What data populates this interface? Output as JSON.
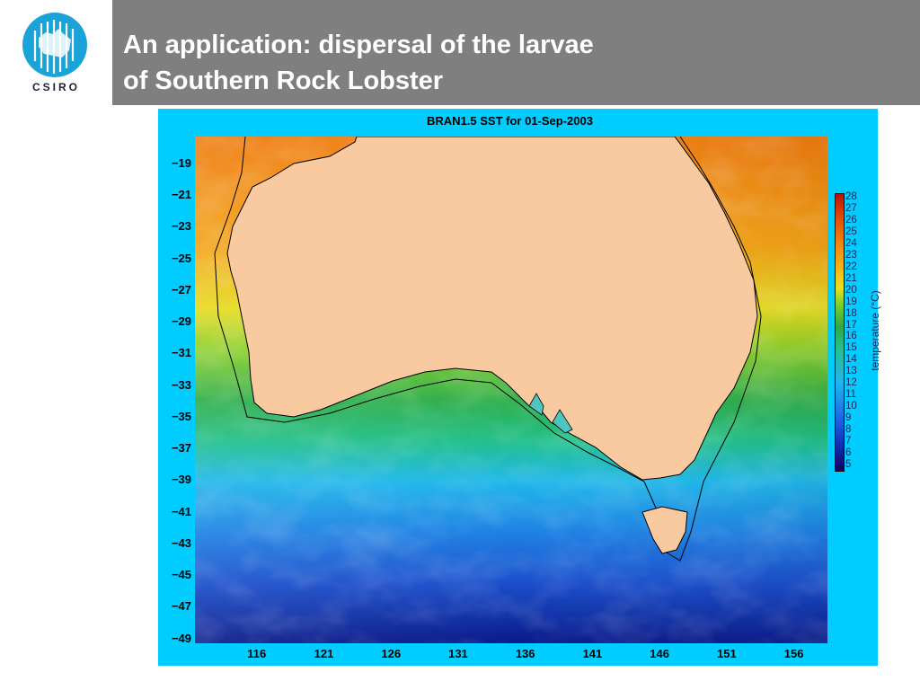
{
  "header": {
    "logo_text": "CSIRO",
    "title_lines": [
      "An application: dispersal of the larvae",
      "of Southern Rock Lobster"
    ]
  },
  "figure": {
    "title": "BRAN1.5 SST for 01-Sep-2003",
    "lat_ticks": [
      "-19",
      "-21",
      "-23",
      "-25",
      "-27",
      "-29",
      "-31",
      "-33",
      "-35",
      "-37",
      "-39",
      "-41",
      "-43",
      "-45",
      "-47",
      "-49"
    ],
    "lat_values": [
      -19,
      -21,
      -23,
      -25,
      -27,
      -29,
      -31,
      -33,
      -35,
      -37,
      -39,
      -41,
      -43,
      -45,
      -47,
      -49
    ],
    "lon_ticks": [
      "116",
      "121",
      "126",
      "131",
      "136",
      "141",
      "146",
      "151",
      "156"
    ],
    "lon_values": [
      116,
      121,
      126,
      131,
      136,
      141,
      146,
      151,
      156
    ],
    "lon_range": [
      111.4,
      158.5
    ],
    "lat_range": [
      -17.3,
      -49.3
    ],
    "colorbar": {
      "label": "temperature (°C)",
      "ticks": [
        "28",
        "27",
        "26",
        "25",
        "24",
        "23",
        "22",
        "21",
        "20",
        "19",
        "18",
        "17",
        "16",
        "15",
        "14",
        "13",
        "12",
        "11",
        "10",
        "9",
        "8",
        "7",
        "6",
        "5"
      ],
      "range": [
        5,
        28
      ]
    },
    "colors": {
      "land": "#f9caa0",
      "frame": "#00ccff",
      "warm": "#ef7c10",
      "cold": "#1233b8"
    }
  }
}
